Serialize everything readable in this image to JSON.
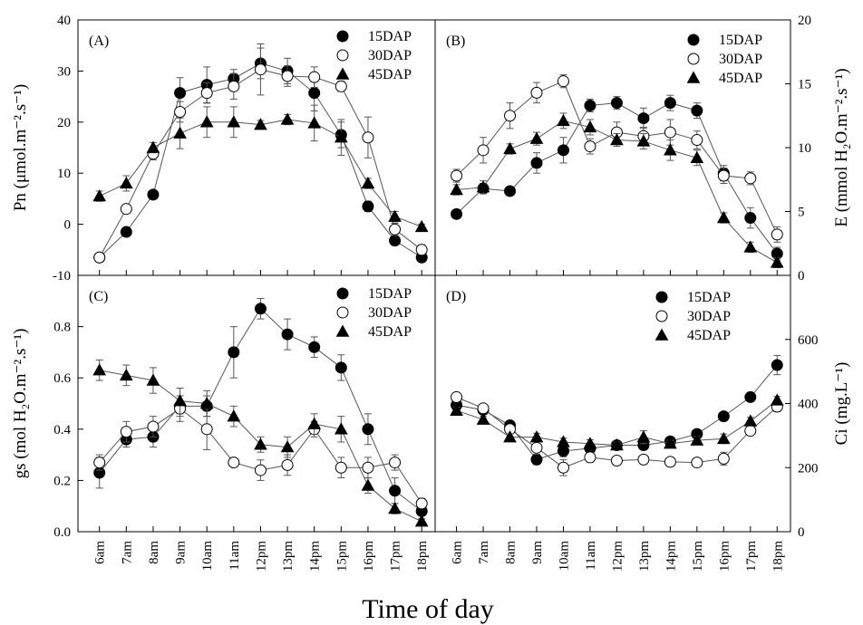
{
  "figure": {
    "xlabel": "Time of day"
  },
  "chart_data": [
    {
      "type": "line",
      "panel_label": "(A)",
      "ylabel": "Pn (μmol.m⁻².s⁻¹)",
      "yaxis_side": "left",
      "ylim": [
        -10,
        40
      ],
      "yticks": [
        -10,
        0,
        10,
        20,
        30,
        40
      ],
      "categories": [
        "6am",
        "7am",
        "8am",
        "9am",
        "10am",
        "11am",
        "12pm",
        "13pm",
        "14pm",
        "15pm",
        "16pm",
        "17pm",
        "18pm"
      ],
      "legend_position": "top-right",
      "series": [
        {
          "name": "15DAP",
          "marker": "filled-circle",
          "values": [
            -6.5,
            -1.5,
            5.8,
            25.7,
            27.3,
            28.5,
            31.5,
            30.0,
            25.7,
            17.5,
            3.5,
            -3.2,
            -6.5
          ],
          "errors": [
            0.5,
            0.7,
            0.8,
            3.0,
            3.5,
            1.8,
            3.0,
            2.5,
            3.5,
            2.5,
            1.0,
            0.8,
            0.8
          ]
        },
        {
          "name": "30DAP",
          "marker": "open-circle",
          "values": [
            -6.5,
            3.0,
            13.8,
            22.0,
            25.7,
            27.0,
            30.3,
            29.0,
            28.8,
            27.0,
            17.0,
            -1.0,
            -5.0
          ],
          "errors": [
            0.5,
            0.8,
            1.2,
            2.0,
            2.0,
            2.5,
            5.0,
            2.0,
            2.0,
            1.0,
            4.0,
            1.2,
            1.0
          ]
        },
        {
          "name": "45DAP",
          "marker": "filled-triangle",
          "values": [
            5.5,
            8.0,
            15.0,
            17.8,
            20.0,
            20.0,
            19.5,
            20.5,
            19.8,
            17.0,
            8.0,
            1.5,
            -0.5
          ],
          "errors": [
            1.0,
            1.5,
            1.0,
            3.0,
            3.0,
            3.0,
            0.8,
            1.0,
            3.5,
            3.5,
            1.0,
            1.0,
            0.5
          ]
        }
      ]
    },
    {
      "type": "line",
      "panel_label": "(B)",
      "ylabel": "E (mmol H₂O.m⁻².s⁻¹)",
      "yaxis_side": "right",
      "ylim": [
        0,
        20
      ],
      "yticks": [
        0,
        5,
        10,
        15,
        20
      ],
      "categories": [
        "6am",
        "7am",
        "8am",
        "9am",
        "10am",
        "11am",
        "12pm",
        "13pm",
        "14pm",
        "15pm",
        "16pm",
        "17pm",
        "18pm"
      ],
      "legend_position": "top-right",
      "series": [
        {
          "name": "15DAP",
          "marker": "filled-circle",
          "values": [
            4.8,
            6.8,
            6.6,
            8.8,
            9.8,
            13.3,
            13.5,
            12.3,
            13.5,
            12.9,
            8.0,
            4.5,
            1.7
          ],
          "errors": [
            0.3,
            0.4,
            0.3,
            0.8,
            1.0,
            0.5,
            0.5,
            0.8,
            0.6,
            0.6,
            0.6,
            0.8,
            0.5
          ]
        },
        {
          "name": "30DAP",
          "marker": "open-circle",
          "values": [
            7.8,
            9.8,
            12.5,
            14.3,
            15.2,
            10.1,
            11.2,
            10.9,
            11.2,
            10.6,
            7.8,
            7.6,
            3.2
          ],
          "errors": [
            0.5,
            1.0,
            1.0,
            0.8,
            0.5,
            0.6,
            0.8,
            0.7,
            1.0,
            0.7,
            0.6,
            0.5,
            0.6
          ]
        },
        {
          "name": "45DAP",
          "marker": "filled-triangle",
          "values": [
            6.7,
            6.9,
            9.9,
            10.7,
            12.1,
            11.6,
            10.6,
            10.5,
            9.8,
            9.2,
            4.5,
            2.2,
            1.0
          ],
          "errors": [
            0.4,
            0.5,
            0.4,
            0.5,
            0.6,
            0.6,
            0.5,
            0.6,
            0.8,
            0.6,
            0.4,
            0.4,
            0.4
          ]
        }
      ]
    },
    {
      "type": "line",
      "panel_label": "(C)",
      "ylabel": "gs (mol H₂O.m⁻².s⁻¹)",
      "yaxis_side": "left",
      "ylim": [
        0.0,
        1.0
      ],
      "yticks": [
        0.0,
        0.2,
        0.4,
        0.6,
        0.8
      ],
      "categories": [
        "6am",
        "7am",
        "8am",
        "9am",
        "10am",
        "11am",
        "12pm",
        "13pm",
        "14pm",
        "15pm",
        "16pm",
        "17pm",
        "18pm"
      ],
      "legend_position": "top-right",
      "series": [
        {
          "name": "15DAP",
          "marker": "filled-circle",
          "values": [
            0.23,
            0.36,
            0.37,
            0.49,
            0.49,
            0.7,
            0.87,
            0.77,
            0.72,
            0.64,
            0.4,
            0.16,
            0.08
          ],
          "errors": [
            0.06,
            0.03,
            0.04,
            0.04,
            0.04,
            0.1,
            0.04,
            0.06,
            0.04,
            0.05,
            0.06,
            0.05,
            0.03
          ]
        },
        {
          "name": "30DAP",
          "marker": "open-circle",
          "values": [
            0.27,
            0.39,
            0.41,
            0.48,
            0.4,
            0.27,
            0.24,
            0.26,
            0.4,
            0.25,
            0.25,
            0.27,
            0.11
          ],
          "errors": [
            0.03,
            0.04,
            0.04,
            0.05,
            0.08,
            0.01,
            0.04,
            0.04,
            0.03,
            0.04,
            0.04,
            0.03,
            0.02
          ]
        },
        {
          "name": "45DAP",
          "marker": "filled-triangle",
          "values": [
            0.63,
            0.61,
            0.59,
            0.51,
            0.5,
            0.45,
            0.34,
            0.33,
            0.42,
            0.4,
            0.18,
            0.09,
            0.04
          ],
          "errors": [
            0.04,
            0.04,
            0.05,
            0.05,
            0.05,
            0.04,
            0.03,
            0.04,
            0.04,
            0.05,
            0.03,
            0.02,
            0.01
          ]
        }
      ]
    },
    {
      "type": "line",
      "panel_label": "(D)",
      "ylabel": "Ci (mg.L⁻¹)",
      "yaxis_side": "right",
      "ylim": [
        0,
        800
      ],
      "yticks": [
        0,
        200,
        400,
        600
      ],
      "categories": [
        "6am",
        "7am",
        "8am",
        "9am",
        "10am",
        "11am",
        "12pm",
        "13pm",
        "14pm",
        "15pm",
        "16pm",
        "17pm",
        "18pm"
      ],
      "legend_position": "top-center",
      "series": [
        {
          "name": "15DAP",
          "marker": "filled-circle",
          "values": [
            395,
            380,
            332,
            225,
            252,
            260,
            270,
            270,
            282,
            305,
            360,
            420,
            520
          ],
          "errors": [
            15,
            10,
            12,
            15,
            18,
            15,
            10,
            12,
            10,
            12,
            12,
            12,
            30
          ]
        },
        {
          "name": "30DAP",
          "marker": "open-circle",
          "values": [
            420,
            385,
            320,
            262,
            200,
            232,
            222,
            225,
            218,
            216,
            228,
            315,
            390
          ],
          "errors": [
            10,
            10,
            12,
            20,
            25,
            15,
            12,
            12,
            10,
            12,
            20,
            15,
            15
          ]
        },
        {
          "name": "45DAP",
          "marker": "filled-triangle",
          "values": [
            378,
            350,
            295,
            295,
            280,
            275,
            270,
            295,
            275,
            285,
            290,
            345,
            410
          ],
          "errors": [
            10,
            10,
            10,
            12,
            12,
            12,
            10,
            20,
            10,
            12,
            15,
            12,
            12
          ]
        }
      ]
    }
  ]
}
